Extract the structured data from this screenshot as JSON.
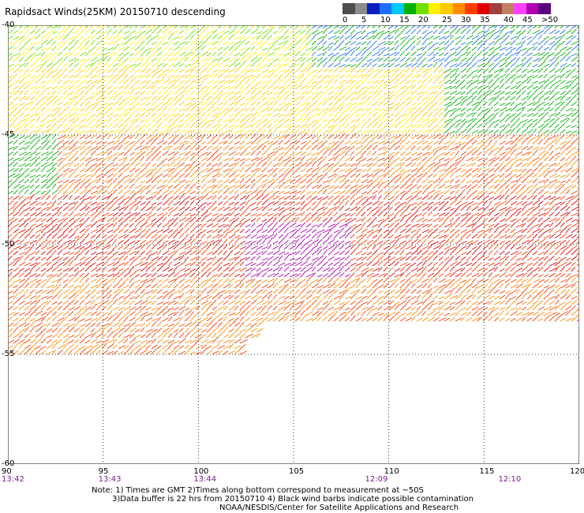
{
  "title": "Rapidsact Winds(25KM) 20150710 descending",
  "legend": {
    "colors": [
      "#4d4d4d",
      "#8c8c8c",
      "#0a1fbf",
      "#1f6fff",
      "#00c8ff",
      "#00b000",
      "#70e000",
      "#fff000",
      "#ffc800",
      "#ff8c00",
      "#ff3c00",
      "#e00000",
      "#a04040",
      "#c08060",
      "#ff40ff",
      "#b000b0",
      "#5a0080"
    ],
    "labels": [
      "0",
      "5",
      "10",
      "15",
      "20",
      "25",
      "30",
      "35",
      "40",
      "45",
      ">50 knots"
    ]
  },
  "map": {
    "lat_labels": [
      "-40",
      "-45",
      "-50",
      "-55",
      "-60"
    ],
    "lon_labels": [
      "90",
      "95",
      "100",
      "105",
      "110",
      "115",
      "120"
    ],
    "time_labels": [
      "13:42",
      "13:43",
      "13:44",
      "12:09",
      "12:10"
    ],
    "lon_range": [
      90,
      120
    ],
    "lat_range": [
      -60,
      -40
    ],
    "grid": true
  },
  "notes": [
    "Note: 1) Times are GMT 2)Times along bottom correspond to measurement at ~50S",
    "3)Data buffer is 22 hrs from 20150710 4) Black wind barbs indicate possible contamination",
    "NOAA/NESDIS/Center for Satellite Applications and Research"
  ]
}
